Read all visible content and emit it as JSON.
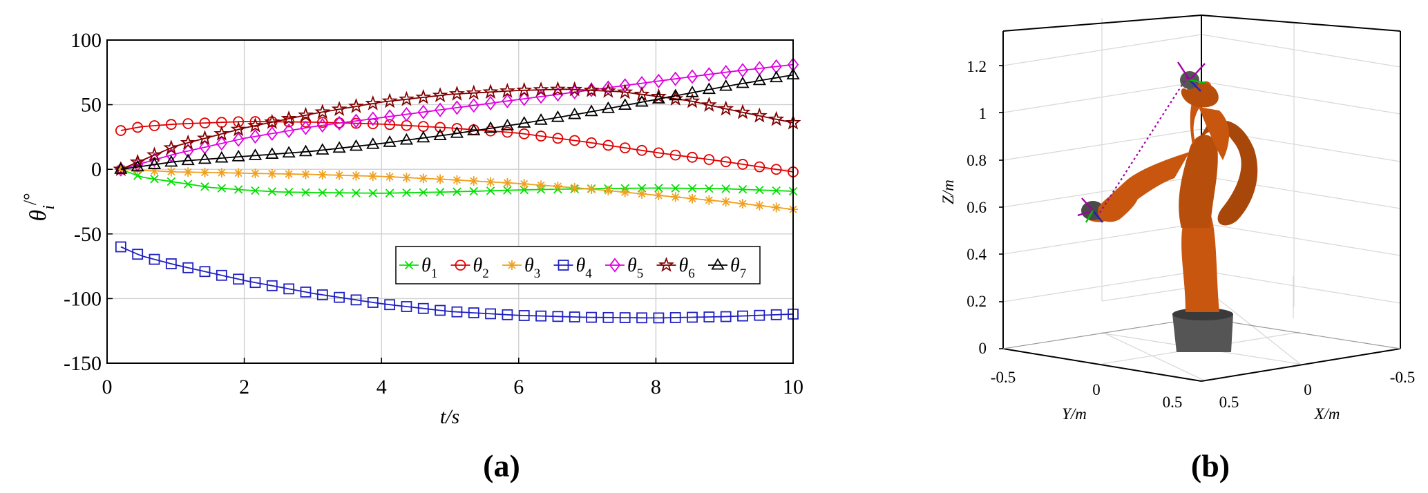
{
  "chart_data": [
    {
      "type": "line",
      "panel_label": "(a)",
      "xlabel": "t/s",
      "ylabel": {
        "base": "θ",
        "sub": "i",
        "sup": "/°"
      },
      "xlim": [
        0,
        10
      ],
      "ylim": [
        -150,
        100
      ],
      "xticks": [
        0,
        2,
        4,
        6,
        8,
        10
      ],
      "yticks": [
        100,
        50,
        0,
        -50,
        -100,
        -150
      ],
      "grid": true,
      "legend_position": "lower-right, single row",
      "series": [
        {
          "name": "θ1",
          "base": "θ",
          "sub": "1",
          "color": "#00e000",
          "marker": "x",
          "x": [
            0.2,
            0.5,
            1,
            1.5,
            2,
            2.5,
            3,
            4,
            5,
            6,
            7,
            8,
            9,
            10
          ],
          "y": [
            0,
            -6,
            -10,
            -14,
            -16,
            -17.5,
            -18,
            -18.5,
            -17.5,
            -16,
            -15,
            -14.5,
            -15,
            -17
          ]
        },
        {
          "name": "θ2",
          "base": "θ",
          "sub": "2",
          "color": "#e00000",
          "marker": "circle",
          "x": [
            0.2,
            0.5,
            1,
            2,
            3,
            4,
            5,
            6,
            7,
            8,
            9,
            10
          ],
          "y": [
            30,
            33,
            35,
            37,
            36.5,
            35,
            32,
            28,
            21,
            13,
            6,
            -2
          ]
        },
        {
          "name": "θ3",
          "base": "θ",
          "sub": "3",
          "color": "#f0a020",
          "marker": "star",
          "x": [
            0.2,
            1,
            2,
            3,
            4,
            5,
            6,
            7,
            8,
            9,
            10
          ],
          "y": [
            0,
            -2,
            -3,
            -4,
            -5.5,
            -8,
            -11,
            -15,
            -20,
            -25,
            -31
          ]
        },
        {
          "name": "θ4",
          "base": "θ",
          "sub": "4",
          "color": "#2020c0",
          "marker": "square",
          "x": [
            0.2,
            0.5,
            1,
            1.5,
            2,
            3,
            4,
            5,
            6,
            7,
            8,
            9,
            10
          ],
          "y": [
            -60,
            -67,
            -74,
            -80,
            -86,
            -96,
            -104,
            -110,
            -113,
            -114.5,
            -115,
            -114,
            -112
          ]
        },
        {
          "name": "θ5",
          "base": "θ",
          "sub": "5",
          "color": "#e000e0",
          "marker": "diamond",
          "x": [
            0.2,
            1,
            2,
            3,
            4,
            5,
            6,
            7,
            8,
            9,
            10
          ],
          "y": [
            0,
            12,
            24,
            33,
            40,
            47,
            54,
            61,
            68,
            75,
            81
          ]
        },
        {
          "name": "θ6",
          "base": "θ",
          "sub": "6",
          "color": "#800000",
          "marker": "pentagram",
          "x": [
            0.2,
            1,
            2,
            3,
            4,
            5,
            6,
            6.7,
            7.5,
            8.5,
            9,
            10
          ],
          "y": [
            0,
            18,
            32,
            43,
            52,
            58,
            61,
            62,
            60,
            53,
            47,
            36
          ]
        },
        {
          "name": "θ7",
          "base": "θ",
          "sub": "7",
          "color": "#000000",
          "marker": "triangle",
          "x": [
            0.2,
            1,
            2,
            3,
            4,
            5,
            6,
            7,
            8,
            9,
            10
          ],
          "y": [
            0,
            6,
            10,
            14,
            20,
            27,
            35,
            44,
            54,
            64,
            73
          ]
        }
      ]
    },
    {
      "type": "3d-plot",
      "panel_label": "(b)",
      "zlabel": "Z/m",
      "ylabel": "Y/m",
      "xlabel": "X/m",
      "zticks": [
        "0",
        "0.2",
        "0.4",
        "0.6",
        "0.8",
        "1",
        "1.2"
      ],
      "yticks": [
        "-0.5",
        "0",
        "0.5"
      ],
      "xticks": [
        "0.5",
        "0",
        "-0.5"
      ],
      "grid": true,
      "colors": {
        "robot_body": "#c8560e",
        "robot_base": "#4a4a4a",
        "path": "#a000a0"
      },
      "path_endpoints": [
        [
          0.55,
          0.0,
          0.58
        ],
        [
          -0.05,
          0.1,
          1.17
        ]
      ]
    }
  ]
}
